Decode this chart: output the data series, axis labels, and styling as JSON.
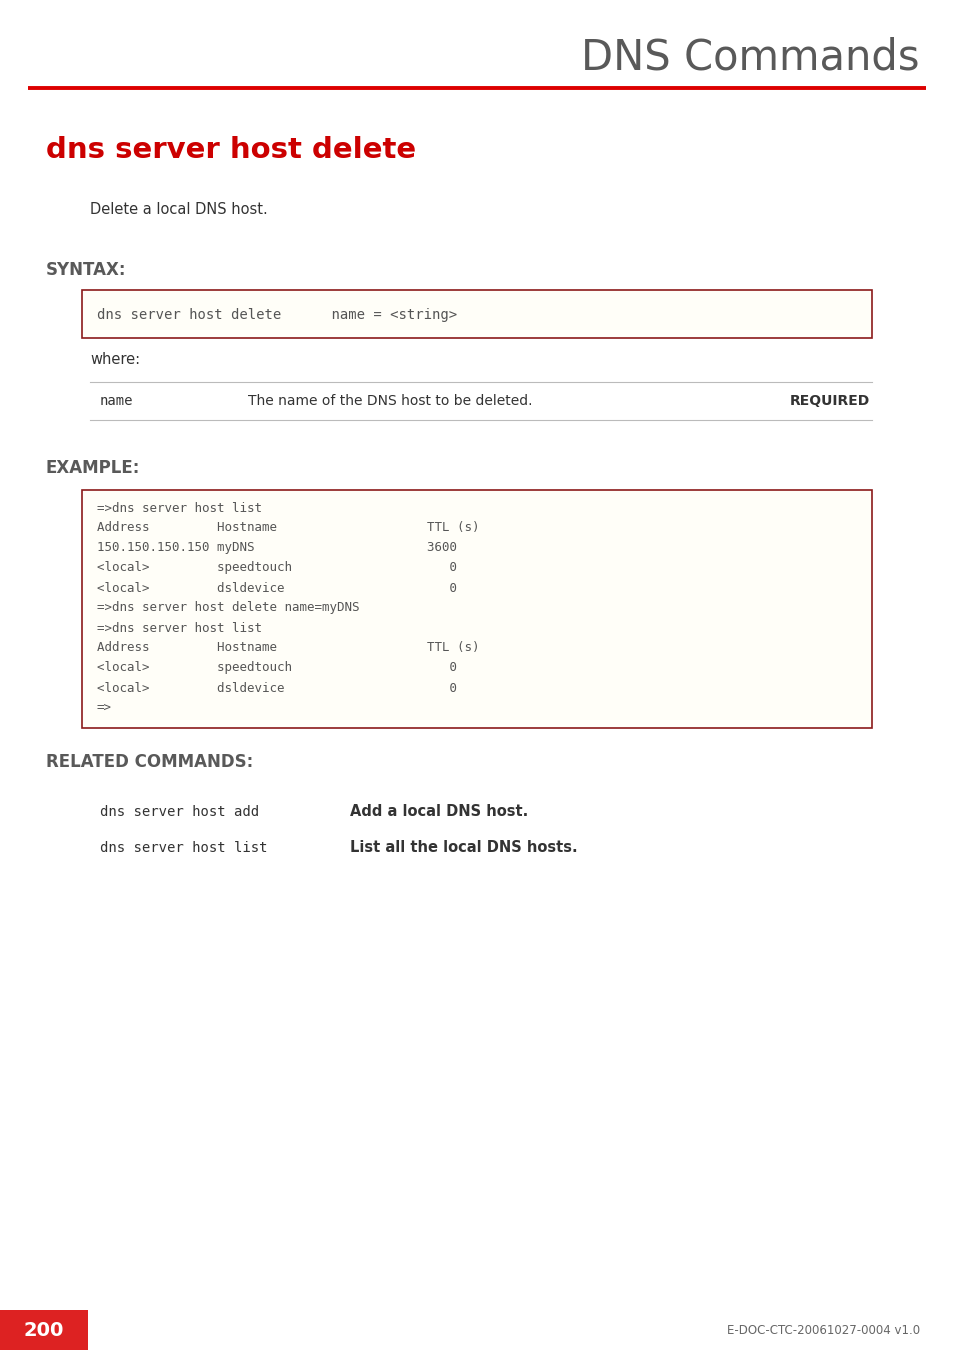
{
  "page_title": "DNS Commands",
  "section_title": "dns server host delete",
  "description": "Delete a local DNS host.",
  "syntax_label": "SYNTAX:",
  "syntax_box_text": "dns server host delete      name = <string>",
  "where_label": "where:",
  "param_name": "name",
  "param_desc": "The name of the DNS host to be deleted.",
  "param_required": "REQUIRED",
  "example_label": "EXAMPLE:",
  "example_lines": [
    "=>dns server host list",
    "Address         Hostname                    TTL (s)",
    "150.150.150.150 myDNS                       3600",
    "<local>         speedtouch                     0",
    "<local>         dsldevice                      0",
    "=>dns server host delete name=myDNS",
    "=>dns server host list",
    "Address         Hostname                    TTL (s)",
    "<local>         speedtouch                     0",
    "<local>         dsldevice                      0",
    "=>"
  ],
  "related_label": "RELATED COMMANDS:",
  "related_commands": [
    [
      "dns server host add",
      "Add a local DNS host."
    ],
    [
      "dns server host list",
      "List all the local DNS hosts."
    ]
  ],
  "page_number": "200",
  "footer_text": "E-DOC-CTC-20061027-0004 v1.0",
  "title_color": "#cc0000",
  "section_heading_color": "#595959",
  "text_color": "#333333",
  "mono_color": "#555555",
  "box_border_color": "#8b1a1a",
  "background_color": "#ffffff",
  "red_line_color": "#dd0000",
  "page_num_bg": "#dd2222",
  "page_num_color": "#ffffff"
}
